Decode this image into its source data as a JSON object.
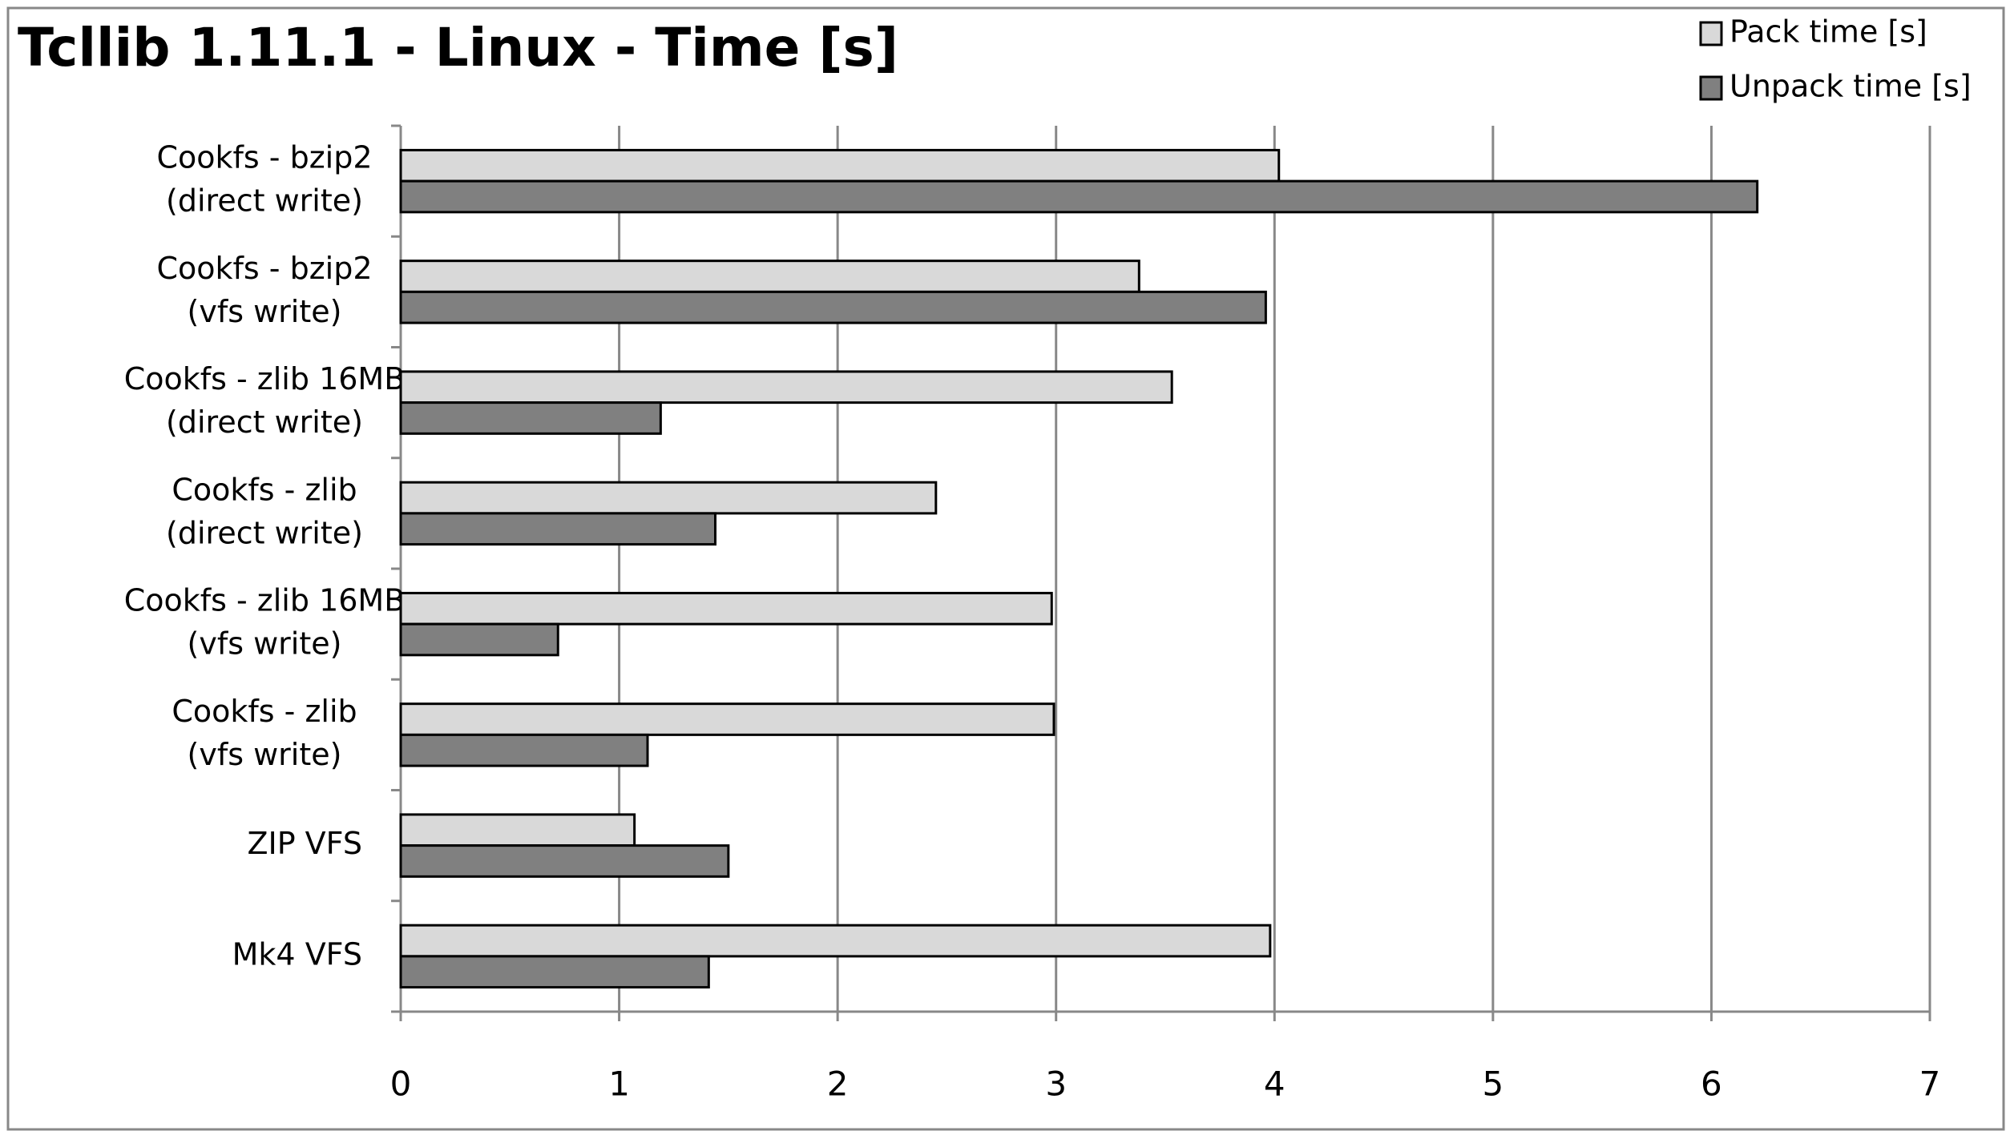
{
  "chart_data": {
    "type": "hbar",
    "title": "Tcllib 1.11.1 - Linux - Time [s]",
    "categories": [
      [
        "Cookfs - bzip2",
        "(direct write)"
      ],
      [
        "Cookfs - bzip2",
        "(vfs write)"
      ],
      [
        "Cookfs - zlib 16MB",
        "(direct write)"
      ],
      [
        "Cookfs - zlib",
        "(direct write)"
      ],
      [
        "Cookfs - zlib 16MB",
        "(vfs write)"
      ],
      [
        "Cookfs - zlib",
        "(vfs write)"
      ],
      [
        "ZIP VFS"
      ],
      [
        "Mk4 VFS"
      ]
    ],
    "series": [
      {
        "name": "Pack time [s]",
        "color": "#d9d9d9",
        "values": [
          4.02,
          3.38,
          3.53,
          2.45,
          2.98,
          2.99,
          1.07,
          3.98
        ]
      },
      {
        "name": "Unpack time [s]",
        "color": "#808080",
        "values": [
          6.21,
          3.96,
          1.19,
          1.44,
          0.72,
          1.13,
          1.5,
          1.41
        ]
      }
    ],
    "xlim": [
      0,
      7
    ],
    "xticks": [
      0,
      1,
      2,
      3,
      4,
      5,
      6,
      7
    ],
    "grid": true,
    "legend": "top-right"
  }
}
